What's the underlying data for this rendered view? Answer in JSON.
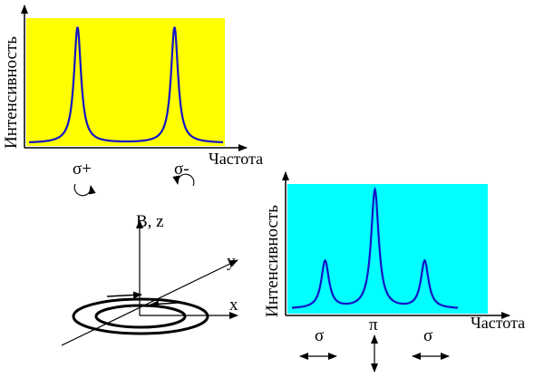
{
  "colors": {
    "panel_left_fill": "#ffff00",
    "panel_right_fill": "#00ffff",
    "curve": "#1414c8",
    "axes": "#000000"
  },
  "chart_data": [
    {
      "type": "line",
      "title": "",
      "xlabel": "Частота",
      "ylabel": "Интенсивность",
      "grid": false,
      "peak_labels": [
        "σ+",
        "σ-"
      ],
      "series": [
        {
          "peaks": [
            {
              "x": 0.25,
              "height": 1.0
            },
            {
              "x": 0.75,
              "height": 1.0
            }
          ]
        }
      ]
    },
    {
      "type": "line",
      "title": "",
      "xlabel": "Частота",
      "ylabel": "Интенсивность",
      "grid": false,
      "peak_labels": [
        "σ",
        "π",
        "σ"
      ],
      "series": [
        {
          "peaks": [
            {
              "x": 0.2,
              "height": 0.4
            },
            {
              "x": 0.5,
              "height": 1.0
            },
            {
              "x": 0.8,
              "height": 0.4
            }
          ]
        }
      ]
    }
  ],
  "axes3d": {
    "z_label": "B, z",
    "y_label": "y",
    "x_label": "x"
  }
}
